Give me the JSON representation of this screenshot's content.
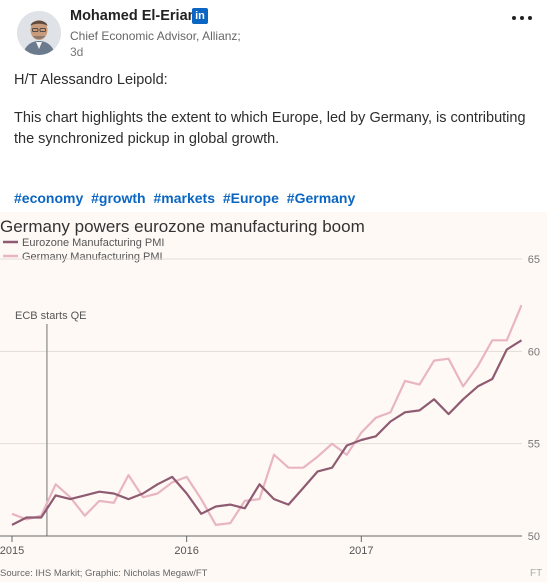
{
  "post": {
    "author_name": "Mohamed El-Erian",
    "author_badge": "in",
    "author_title": "Chief Economic Advisor, Allianz;",
    "posted_time": "3d",
    "intro": "H/T Alessandro Leipold:",
    "body": "This chart highlights the extent to which Europe, led by Germany, is contributing the synchronized pickup in global growth.",
    "hashtags": [
      "#economy",
      "#growth",
      "#markets",
      "#Europe",
      "#Germany"
    ]
  },
  "colors": {
    "link": "#0a66c2",
    "eurozone_line": "#8e5b72",
    "germany_line": "#e8b5c2",
    "chart_bg": "#fff9f5"
  },
  "chart_data": {
    "type": "line",
    "title": "Germany powers eurozone manufacturing boom",
    "legend": [
      "Eurozone Manufacturing PMI",
      "Germany Manufacturing PMI"
    ],
    "legend_position": "top-left",
    "annotation": "ECB starts QE",
    "annotation_x": 2015.2,
    "x_ticks": [
      "2015",
      "2016",
      "2017"
    ],
    "y_ticks": [
      "50",
      "55",
      "60",
      "65"
    ],
    "ylim": [
      50,
      65
    ],
    "xlim": [
      2015.0,
      2017.92
    ],
    "grid": true,
    "source": "Source: IHS Markit; Graphic: Nicholas Megaw/FT",
    "series": [
      {
        "name": "Eurozone Manufacturing PMI",
        "x": [
          2015.0,
          2015.083,
          2015.167,
          2015.25,
          2015.333,
          2015.417,
          2015.5,
          2015.583,
          2015.667,
          2015.75,
          2015.833,
          2015.917,
          2016.0,
          2016.083,
          2016.167,
          2016.25,
          2016.333,
          2016.417,
          2016.5,
          2016.583,
          2016.667,
          2016.75,
          2016.833,
          2016.917,
          2017.0,
          2017.083,
          2017.167,
          2017.25,
          2017.333,
          2017.417,
          2017.5,
          2017.583,
          2017.667,
          2017.75,
          2017.833,
          2017.917
        ],
        "values": [
          50.6,
          51.0,
          51.0,
          52.2,
          52.0,
          52.2,
          52.4,
          52.3,
          52.0,
          52.3,
          52.8,
          53.2,
          52.3,
          51.2,
          51.6,
          51.7,
          51.5,
          52.8,
          52.0,
          51.7,
          52.6,
          53.5,
          53.7,
          54.9,
          55.2,
          55.4,
          56.2,
          56.7,
          56.8,
          57.4,
          56.6,
          57.4,
          58.1,
          58.5,
          60.1,
          60.6
        ]
      },
      {
        "name": "Germany Manufacturing PMI",
        "x": [
          2015.0,
          2015.083,
          2015.167,
          2015.25,
          2015.333,
          2015.417,
          2015.5,
          2015.583,
          2015.667,
          2015.75,
          2015.833,
          2015.917,
          2016.0,
          2016.083,
          2016.167,
          2016.25,
          2016.333,
          2016.417,
          2016.5,
          2016.583,
          2016.667,
          2016.75,
          2016.833,
          2016.917,
          2017.0,
          2017.083,
          2017.167,
          2017.25,
          2017.333,
          2017.417,
          2017.5,
          2017.583,
          2017.667,
          2017.75,
          2017.833,
          2017.917
        ],
        "values": [
          51.2,
          50.9,
          51.1,
          52.8,
          52.1,
          51.1,
          51.9,
          51.8,
          53.3,
          52.1,
          52.3,
          52.9,
          53.2,
          52.0,
          50.6,
          50.7,
          51.9,
          52.0,
          54.4,
          53.7,
          53.7,
          54.3,
          55.0,
          54.4,
          55.6,
          56.4,
          56.7,
          58.4,
          58.2,
          59.5,
          59.6,
          58.1,
          59.2,
          60.6,
          60.6,
          62.5
        ]
      }
    ]
  }
}
